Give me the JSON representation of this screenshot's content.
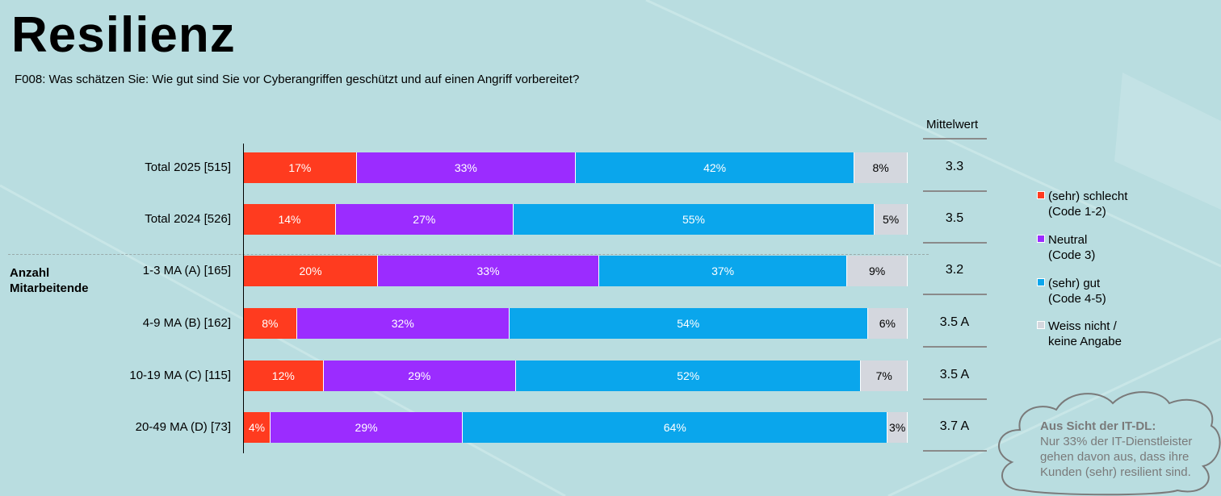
{
  "title": "Resilienz",
  "question": "F008: Was schätzen Sie: Wie gut sind Sie vor Cyberangriffen geschützt und auf einen Angriff vorbereitet?",
  "group_label": [
    "Anzahl",
    "Mitarbeitende"
  ],
  "mean_header": "Mittelwert",
  "colors": {
    "schlecht": "#ff3b1f",
    "neutral": "#9b2cff",
    "gut": "#0aa6ec",
    "weiss_nicht": "#d4d7de",
    "background": "#b9dde0"
  },
  "chart_data": {
    "type": "bar",
    "orientation": "horizontal-stacked-100",
    "categories": [
      "Total 2025 [515]",
      "Total 2024 [526]",
      "1-3 MA (A) [165]",
      "4-9 MA (B) [162]",
      "10-19 MA (C) [115]",
      "20-49 MA (D) [73]"
    ],
    "series": [
      {
        "name": "(sehr) schlecht (Code 1-2)",
        "values": [
          17,
          14,
          20,
          8,
          12,
          4
        ]
      },
      {
        "name": "Neutral (Code 3)",
        "values": [
          33,
          27,
          33,
          32,
          29,
          29
        ]
      },
      {
        "name": "(sehr) gut (Code 4-5)",
        "values": [
          42,
          55,
          37,
          54,
          52,
          64
        ]
      },
      {
        "name": "Weiss nicht / keine Angabe",
        "values": [
          8,
          5,
          9,
          6,
          7,
          3
        ]
      }
    ],
    "unit": "%",
    "legend_placement": "right",
    "means": [
      "3.3",
      "3.5",
      "3.2",
      "3.5 A",
      "3.5 A",
      "3.7 A"
    ]
  },
  "legend": [
    {
      "line1": "(sehr) schlecht",
      "line2": "(Code 1-2)"
    },
    {
      "line1": "Neutral",
      "line2": "(Code 3)"
    },
    {
      "line1": "(sehr) gut",
      "line2": "(Code 4-5)"
    },
    {
      "line1": "Weiss nicht /",
      "line2": "keine Angabe"
    }
  ],
  "note": {
    "heading": "Aus Sicht der IT-DL:",
    "lines": [
      "Nur 33% der IT-Dienstleister",
      "gehen davon aus, dass ihre",
      "Kunden (sehr) resilient sind."
    ]
  }
}
